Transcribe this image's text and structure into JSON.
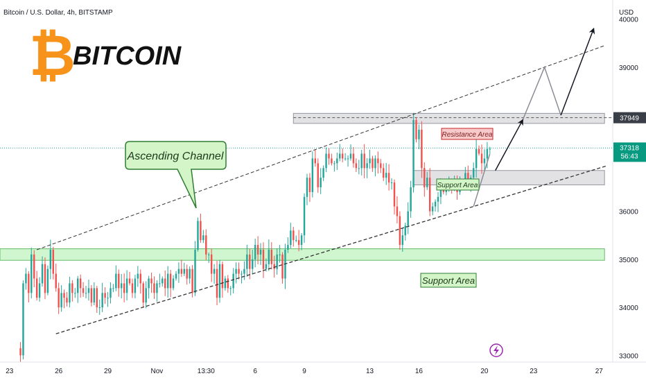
{
  "header": {
    "title": "Bitcoin / U.S. Dollar, 4h, BITSTAMP",
    "currency": "USD"
  },
  "logo": {
    "text": "BITCOIN",
    "symbol": "₿"
  },
  "annotations": {
    "channel_label": "Ascending Channel",
    "resistance_label": "Resistance Area",
    "support_small_label": "Support Area",
    "support_big_label": "Support Area"
  },
  "price_tags": {
    "resistance": "37949",
    "current": "37318",
    "countdown": "56:43"
  },
  "colors": {
    "up": "#26a69a",
    "down": "#ef5350",
    "tv_green": "#089981",
    "accent_green": "#2e7d32"
  },
  "chart_data": {
    "type": "candlestick",
    "y_ticks": [
      33000,
      34000,
      35000,
      36000,
      37000,
      38000,
      39000,
      40000
    ],
    "y_tick_labels": [
      "33000",
      "34000",
      "35000",
      "36000",
      "",
      "",
      "39000",
      "40000"
    ],
    "x_ticks": [
      {
        "label": "23",
        "bar": -4
      },
      {
        "label": "26",
        "bar": 14
      },
      {
        "label": "29",
        "bar": 32
      },
      {
        "label": "Nov",
        "bar": 50
      },
      {
        "label": "13:30",
        "bar": 68
      },
      {
        "label": "6",
        "bar": 86
      },
      {
        "label": "9",
        "bar": 104
      },
      {
        "label": "13",
        "bar": 128
      },
      {
        "label": "16",
        "bar": 146
      },
      {
        "label": "20",
        "bar": 170
      },
      {
        "label": "23",
        "bar": 188
      },
      {
        "label": "27",
        "bar": 212
      }
    ],
    "closes": [
      33000,
      34500,
      34700,
      34300,
      35100,
      34600,
      34200,
      34500,
      34900,
      34300,
      34800,
      35200,
      34700,
      34400,
      34000,
      34300,
      34200,
      34100,
      34500,
      34300,
      34300,
      34600,
      34400,
      34300,
      34300,
      34400,
      34100,
      34400,
      34000,
      34000,
      34300,
      34200,
      34200,
      34400,
      34400,
      34700,
      34400,
      34500,
      34300,
      34600,
      34500,
      34300,
      34600,
      34700,
      34500,
      34100,
      34400,
      34600,
      34500,
      34300,
      34500,
      34500,
      34600,
      34400,
      34700,
      34400,
      34600,
      34700,
      34800,
      34700,
      34800,
      34600,
      34800,
      34300,
      35200,
      35800,
      35400,
      35500,
      35100,
      35100,
      34700,
      34800,
      34200,
      34900,
      34400,
      34600,
      34400,
      34400,
      34700,
      34800,
      34700,
      34700,
      34800,
      35100,
      34800,
      35000,
      35300,
      35100,
      35200,
      34800,
      34900,
      35200,
      34900,
      34800,
      35100,
      35100,
      34600,
      35200,
      35300,
      35600,
      35400,
      35400,
      35300,
      35500,
      36300,
      36700,
      36400,
      37100,
      37000,
      36500,
      36700,
      36900,
      37200,
      37100,
      37000,
      37000,
      37100,
      37200,
      37100,
      37100,
      37100,
      37200,
      37000,
      36900,
      36900,
      37200,
      36900,
      37000,
      37100,
      36900,
      37100,
      37000,
      36900,
      36700,
      36800,
      36600,
      36600,
      36100,
      35900,
      35300,
      35500,
      35700,
      36000,
      36500,
      37900,
      37500,
      37700,
      36900,
      36500,
      36700,
      36000,
      36100,
      36200,
      36300,
      36500,
      36400,
      36500,
      36600,
      36500,
      36600,
      36400,
      36600,
      36600,
      36800,
      36500,
      36700,
      36900,
      37300,
      37200,
      37000,
      37100,
      37300,
      37300
    ],
    "price_range": [
      32860,
      40400
    ],
    "bar_range": [
      -7.5,
      217
    ],
    "paths": {
      "channel_upper": [
        [
          6,
          35200
        ],
        [
          214,
          39450
        ]
      ],
      "channel_lower": [
        [
          13,
          33450
        ],
        [
          215,
          36950
        ]
      ],
      "resistance_zone": [
        100,
        214,
        37830,
        38040
      ],
      "support_zone_small": [
        144,
        214,
        36550,
        36850
      ],
      "support_zone_big": [
        -7.5,
        214,
        34980,
        35220
      ],
      "projection_black_1": [
        [
          174,
          36850
        ],
        [
          184,
          37900
        ]
      ],
      "projection_grey_1": [
        [
          166,
          36100
        ],
        [
          172,
          37200
        ]
      ],
      "projection_grey_2": [
        [
          184,
          37900
        ],
        [
          192,
          39000
        ],
        [
          198,
          38000
        ]
      ],
      "projection_black_2": [
        [
          198,
          38000
        ],
        [
          210,
          39800
        ]
      ]
    },
    "current_price": 37318,
    "resistance_price": 37949
  }
}
